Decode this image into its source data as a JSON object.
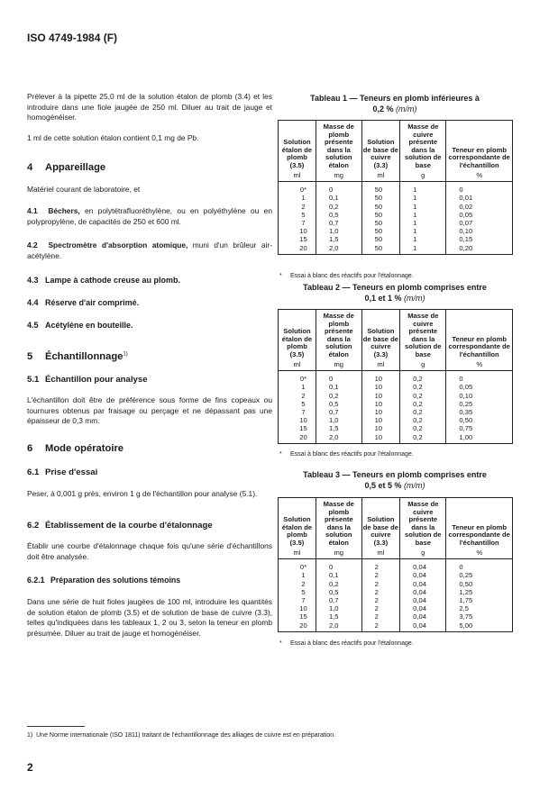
{
  "header": "ISO 4749-1984 (F)",
  "left": {
    "p1": "Prélever à la pipette 25,0 ml de la solution étalon de plomb (3.4) et les introduire dans une fiole jaugée de 250 ml. Diluer au trait de jauge et homogénéiser.",
    "p2": "1 ml de cette solution étalon contient 0,1 mg de Pb.",
    "s4": {
      "num": "4",
      "title": "Appareillage"
    },
    "s4_intro": "Matériel courant de laboratoire, et",
    "s41": {
      "num": "4.1",
      "bold": "Béchers,",
      "text": " en polytétrafluoréthylène, ou en polyéthylène ou en polypropylène, de capacités de 250 et 600 ml."
    },
    "s42": {
      "num": "4.2",
      "bold": "Spectromètre d'absorption atomique,",
      "text": " muni d'un brûleur air-acétylène."
    },
    "s43": {
      "num": "4.3",
      "title": "Lampe à cathode creuse au plomb."
    },
    "s44": {
      "num": "4.4",
      "title": "Réserve d'air comprimé."
    },
    "s45": {
      "num": "4.5",
      "title": "Acétylène en bouteille."
    },
    "s5": {
      "num": "5",
      "title": "Échantillonnage",
      "sup": "1)"
    },
    "s51": {
      "num": "5.1",
      "title": "Échantillon pour analyse"
    },
    "s51_text": "L'échantillon doit être de préférence sous forme de fins copeaux ou tournures obtenus par fraisage ou perçage et ne dépassant pas une épaisseur de 0,3 mm.",
    "s6": {
      "num": "6",
      "title": "Mode opératoire"
    },
    "s61": {
      "num": "6.1",
      "title": "Prise d'essai"
    },
    "s61_text": "Peser, à 0,001 g près, environ 1 g de l'échantillon pour analyse (5.1).",
    "s62": {
      "num": "6.2",
      "title": "Établissement de la courbe d'étalonnage"
    },
    "s62_text": "Établir une courbe d'étalonnage chaque fois qu'une série d'échantillons doit être analysée.",
    "s621": {
      "num": "6.2.1",
      "title": "Préparation des solutions témoins"
    },
    "s621_text": "Dans une série de huit fioles jaugées de 100 ml, introduire les quantités de solution étalon de plomb (3.5) et de solution de base de cuivre (3.3), telles qu'indiquées dans les tableaux 1, 2 ou 3, selon la teneur en plomb présumée. Diluer au trait de jauge et homogénéiser."
  },
  "table_headers": [
    {
      "label": "Solution étalon de plomb (3.5)",
      "unit": "ml"
    },
    {
      "label": "Masse de plomb présente dans la solution étalon",
      "unit": "mg"
    },
    {
      "label": "Solution de base de cuivre (3.3)",
      "unit": "ml"
    },
    {
      "label": "Masse de cuivre présente dans la solution de base",
      "unit": "g"
    },
    {
      "label": "Teneur en plomb correspondante de l'échantillon",
      "unit": "%"
    }
  ],
  "tables": [
    {
      "caption": "Tableau 1 — Teneurs en plomb inférieures à",
      "caption2": "0,2 %",
      "caption_unit": "(m/m)",
      "rows": [
        [
          "0*",
          "0",
          "50",
          "1",
          "0"
        ],
        [
          "1",
          "0,1",
          "50",
          "1",
          "0,01"
        ],
        [
          "2",
          "0,2",
          "50",
          "1",
          "0,02"
        ],
        [
          "5",
          "0,5",
          "50",
          "1",
          "0,05"
        ],
        [
          "7",
          "0,7",
          "50",
          "1",
          "0,07"
        ],
        [
          "10",
          "1,0",
          "50",
          "1",
          "0,10"
        ],
        [
          "15",
          "1,5",
          "50",
          "1",
          "0,15"
        ],
        [
          "20",
          "2,0",
          "50",
          "1",
          "0,20"
        ]
      ],
      "note": "Essai à blanc des réactifs pour l'étalonnage."
    },
    {
      "caption": "Tableau 2 — Teneurs en plomb comprises entre",
      "caption2": "0,1 et 1 %",
      "caption_unit": "(m/m)",
      "rows": [
        [
          "0*",
          "0",
          "10",
          "0,2",
          "0"
        ],
        [
          "1",
          "0,1",
          "10",
          "0,2",
          "0,05"
        ],
        [
          "2",
          "0,2",
          "10",
          "0,2",
          "0,10"
        ],
        [
          "5",
          "0,5",
          "10",
          "0,2",
          "0,25"
        ],
        [
          "7",
          "0,7",
          "10",
          "0,2",
          "0,35"
        ],
        [
          "10",
          "1,0",
          "10",
          "0,2",
          "0,50"
        ],
        [
          "15",
          "1,5",
          "10",
          "0,2",
          "0,75"
        ],
        [
          "20",
          "2,0",
          "10",
          "0,2",
          "1,00"
        ]
      ],
      "note": "Essai à blanc des réactifs pour l'étalonnage."
    },
    {
      "caption": "Tableau 3 — Teneurs en plomb comprises entre",
      "caption2": "0,5 et 5 %",
      "caption_unit": "(m/m)",
      "rows": [
        [
          "0*",
          "0",
          "2",
          "0,04",
          "0"
        ],
        [
          "1",
          "0,1",
          "2",
          "0,04",
          "0,25"
        ],
        [
          "2",
          "0,2",
          "2",
          "0,04",
          "0,50"
        ],
        [
          "5",
          "0,5",
          "2",
          "0,04",
          "1,25"
        ],
        [
          "7",
          "0,7",
          "2",
          "0,04",
          "1,75"
        ],
        [
          "10",
          "1,0",
          "2",
          "0,04",
          "2,5"
        ],
        [
          "15",
          "1,5",
          "2",
          "0,04",
          "3,75"
        ],
        [
          "20",
          "2,0",
          "2",
          "0,04",
          "5,00"
        ]
      ],
      "note": "Essai à blanc des réactifs pour l'étalonnage."
    }
  ],
  "note_marker": "*",
  "footnote": {
    "marker": "1)",
    "text": "Une Norme internationale (ISO 1811) traitant de l'échantillonnage des alliages de cuivre est en préparation."
  },
  "page_number": "2"
}
